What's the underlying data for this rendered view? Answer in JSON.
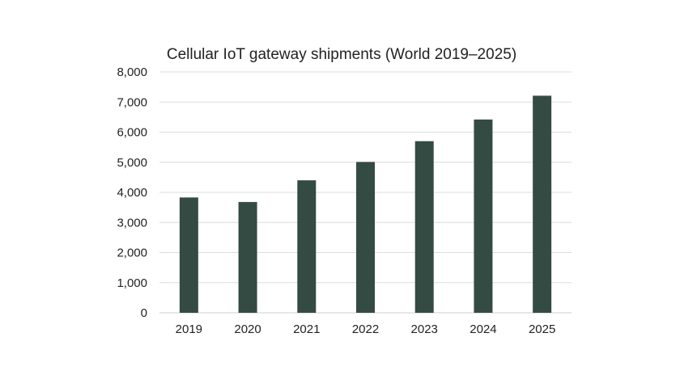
{
  "chart_data": {
    "type": "bar",
    "title": "Cellular IoT gateway shipments (World 2019–2025)",
    "xlabel": "",
    "ylabel": "",
    "categories": [
      "2019",
      "2020",
      "2021",
      "2022",
      "2023",
      "2024",
      "2025"
    ],
    "values": [
      3830,
      3680,
      4400,
      5010,
      5700,
      6420,
      7210
    ],
    "ylim": [
      0,
      8000
    ],
    "yticks": [
      0,
      1000,
      2000,
      3000,
      4000,
      5000,
      6000,
      7000,
      8000
    ],
    "ytick_labels": [
      "0",
      "1,000",
      "2,000",
      "3,000",
      "4,000",
      "5,000",
      "6,000",
      "7,000",
      "8,000"
    ],
    "grid": "horizontal",
    "legend": "none",
    "colors": {
      "bar": "#344b43",
      "grid": "#dcdcdc",
      "text": "#222222"
    }
  }
}
